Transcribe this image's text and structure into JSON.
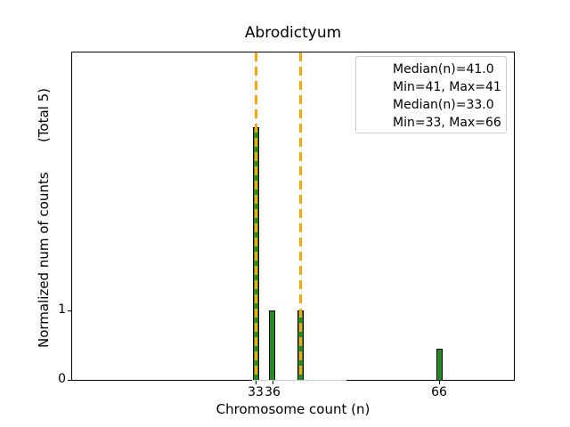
{
  "figure": {
    "title": "Abrodictyum",
    "xlabel": "Chromosome count (n)",
    "ylabel": "Normalized num of counts       (Total 5)"
  },
  "axis": {
    "x_tick_labels": [
      "33",
      "36",
      "66"
    ],
    "y_tick_labels": [
      "0",
      "1"
    ]
  },
  "legend": {
    "position": "upper-right",
    "entries": [
      {
        "swatch": "dashed-line",
        "label": "Median(n)=41.0"
      },
      {
        "swatch": "none",
        "label": "Min=41, Max=41"
      },
      {
        "swatch": "dashed-line",
        "label": "Median(n)=33.0"
      },
      {
        "swatch": "none",
        "label": "Min=33, Max=66"
      }
    ]
  },
  "colors": {
    "bar_fill": "#228B22",
    "bar_edge": "#000000",
    "median_line": "#FFA500",
    "axis": "#000000",
    "legend_border": "#cccccc"
  },
  "chart_data": {
    "type": "bar",
    "title": "Abrodictyum",
    "xlabel": "Chromosome count (n)",
    "ylabel": "Normalized num of counts   (Total 5)",
    "x": [
      33,
      36,
      41,
      66
    ],
    "values": [
      3.65,
      1.0,
      1.0,
      0.45
    ],
    "bar_width": 1,
    "xlim": [
      0,
      79.4
    ],
    "ylim": [
      0,
      4.73
    ],
    "x_ticks": [
      33,
      36,
      66
    ],
    "y_ticks": [
      0,
      1
    ],
    "median_lines": [
      {
        "x": 41,
        "label": "Median(n)=41.0",
        "note": "Min=41, Max=41",
        "style": "dashed",
        "color": "#FFA500"
      },
      {
        "x": 33,
        "label": "Median(n)=33.0",
        "note": "Min=33, Max=66",
        "style": "dashed",
        "color": "#FFA500"
      }
    ],
    "grid": false,
    "legend_position": "upper right",
    "total_annotation": "Total 5"
  }
}
